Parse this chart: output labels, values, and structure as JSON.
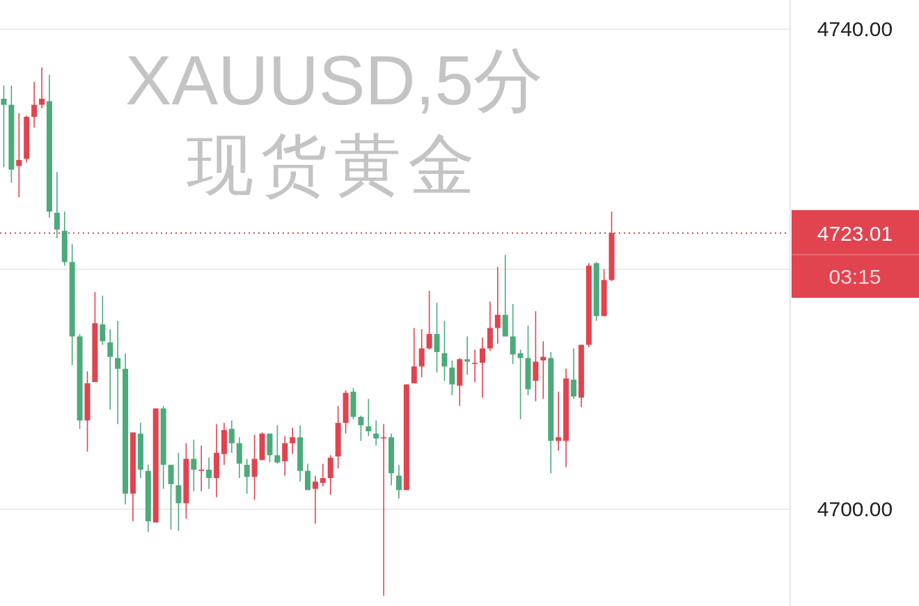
{
  "chart_data": {
    "type": "candlestick",
    "title": "XAUUSD,5分",
    "subtitle": "现货黄金",
    "categories": [
      null,
      null,
      null,
      null,
      null,
      null,
      null,
      null,
      null,
      null,
      null,
      null,
      null,
      null,
      null,
      null,
      null,
      null,
      null,
      null,
      null,
      null,
      null,
      null,
      null,
      null,
      null,
      null,
      null,
      null,
      null,
      null,
      null,
      null,
      null,
      null,
      null,
      null,
      null,
      null,
      null,
      null,
      null,
      null,
      null,
      null,
      null,
      null,
      null,
      null,
      null,
      null,
      null,
      null,
      null,
      null,
      null,
      null,
      null,
      null,
      null,
      null,
      null,
      null,
      null,
      null,
      null,
      null,
      null,
      null,
      null,
      null,
      null,
      null,
      null,
      null,
      null,
      null,
      null,
      null,
      null,
      null,
      null,
      null,
      null,
      null,
      null,
      null,
      null,
      null,
      null,
      null,
      null,
      null,
      null,
      null,
      null,
      null,
      null,
      null,
      null,
      null,
      null,
      null
    ],
    "ohlc": [
      [
        4734.2,
        4735.3,
        4728.5,
        4733.7
      ],
      [
        4733.7,
        4735.3,
        4727.2,
        4728.3
      ],
      [
        4728.6,
        4733.0,
        4726.0,
        4729.1
      ],
      [
        4729.2,
        4732.8,
        4728.9,
        4732.7
      ],
      [
        4732.7,
        4735.6,
        4731.8,
        4733.7
      ],
      [
        4733.7,
        4736.8,
        4733.4,
        4734.2
      ],
      [
        4734.0,
        4736.2,
        4724.3,
        4724.8
      ],
      [
        4724.7,
        4728.1,
        4722.6,
        4723.3
      ],
      [
        4723.2,
        4724.8,
        4720.3,
        4720.6
      ],
      [
        4720.6,
        4722.1,
        4712.0,
        4714.4
      ],
      [
        4714.4,
        4714.6,
        4706.7,
        4707.4
      ],
      [
        4707.4,
        4711.5,
        4704.8,
        4710.5
      ],
      [
        4710.6,
        4718.1,
        4710.6,
        4715.5
      ],
      [
        4715.4,
        4717.8,
        4713.7,
        4714.0
      ],
      [
        4713.9,
        4715.0,
        4708.3,
        4712.7
      ],
      [
        4712.6,
        4715.7,
        4707.1,
        4711.7
      ],
      [
        4711.7,
        4713.0,
        4700.4,
        4701.3
      ],
      [
        4701.3,
        4706.4,
        4699.0,
        4706.4
      ],
      [
        4706.3,
        4707.2,
        4702.6,
        4703.3
      ],
      [
        4703.2,
        4703.7,
        4698.1,
        4699.0
      ],
      [
        4698.9,
        4708.4,
        4698.9,
        4708.4
      ],
      [
        4708.4,
        4708.6,
        4701.7,
        4703.7
      ],
      [
        4703.7,
        4703.7,
        4698.3,
        4702.1
      ],
      [
        4702.0,
        4704.7,
        4698.2,
        4700.5
      ],
      [
        4700.5,
        4705.5,
        4699.2,
        4704.2
      ],
      [
        4704.2,
        4705.8,
        4701.5,
        4703.3
      ],
      [
        4703.2,
        4705.3,
        4701.5,
        4703.3
      ],
      [
        4703.3,
        4704.3,
        4701.7,
        4702.6
      ],
      [
        4702.6,
        4707.1,
        4701.0,
        4704.7
      ],
      [
        4704.6,
        4707.2,
        4703.7,
        4706.6
      ],
      [
        4706.7,
        4707.4,
        4704.7,
        4705.5
      ],
      [
        4705.5,
        4706.0,
        4702.6,
        4703.8
      ],
      [
        4703.7,
        4704.2,
        4701.3,
        4702.7
      ],
      [
        4702.7,
        4706.2,
        4700.8,
        4704.2
      ],
      [
        4704.1,
        4706.4,
        4704.1,
        4706.3
      ],
      [
        4706.3,
        4706.3,
        4703.9,
        4704.5
      ],
      [
        4704.5,
        4707.0,
        4703.8,
        4703.9
      ],
      [
        4704.0,
        4706.1,
        4702.8,
        4705.5
      ],
      [
        4705.5,
        4706.8,
        4704.6,
        4706.0
      ],
      [
        4706.0,
        4707.0,
        4702.3,
        4703.2
      ],
      [
        4703.2,
        4703.8,
        4701.6,
        4701.6
      ],
      [
        4701.7,
        4702.8,
        4698.8,
        4702.3
      ],
      [
        4702.2,
        4703.8,
        4701.9,
        4702.6
      ],
      [
        4702.6,
        4704.5,
        4701.2,
        4704.3
      ],
      [
        4704.4,
        4708.6,
        4703.4,
        4707.2
      ],
      [
        4707.2,
        4709.9,
        4706.3,
        4709.7
      ],
      [
        4709.8,
        4710.1,
        4707.5,
        4707.7
      ],
      [
        4707.7,
        4707.8,
        4705.7,
        4707.0
      ],
      [
        4706.9,
        4709.2,
        4706.1,
        4706.5
      ],
      [
        4706.3,
        4707.4,
        4705.3,
        4705.9
      ],
      [
        4705.9,
        4707.1,
        4692.8,
        4706.0
      ],
      [
        4706.0,
        4706.3,
        4702.0,
        4703.0
      ],
      [
        4702.8,
        4703.7,
        4700.9,
        4701.6
      ],
      [
        4701.6,
        4710.4,
        4701.6,
        4710.4
      ],
      [
        4710.5,
        4715.1,
        4710.5,
        4711.9
      ],
      [
        4711.9,
        4715.0,
        4711.0,
        4713.4
      ],
      [
        4713.4,
        4718.2,
        4713.3,
        4714.6
      ],
      [
        4714.6,
        4717.2,
        4711.4,
        4713.1
      ],
      [
        4713.0,
        4715.7,
        4710.7,
        4711.9
      ],
      [
        4711.8,
        4712.4,
        4709.5,
        4710.4
      ],
      [
        4710.3,
        4712.6,
        4708.6,
        4712.5
      ],
      [
        4712.5,
        4714.4,
        4711.2,
        4712.3
      ],
      [
        4712.1,
        4713.3,
        4710.6,
        4712.2
      ],
      [
        4712.2,
        4714.3,
        4709.3,
        4713.4
      ],
      [
        4713.4,
        4717.3,
        4713.2,
        4715.1
      ],
      [
        4715.1,
        4720.2,
        4713.8,
        4716.2
      ],
      [
        4716.2,
        4721.2,
        4714.4,
        4714.4
      ],
      [
        4714.4,
        4717.1,
        4712.1,
        4712.9
      ],
      [
        4713.0,
        4713.3,
        4707.5,
        4712.6
      ],
      [
        4712.6,
        4715.3,
        4709.5,
        4710.0
      ],
      [
        4710.7,
        4716.5,
        4709.0,
        4712.3
      ],
      [
        4712.4,
        4714.0,
        4709.2,
        4712.7
      ],
      [
        4712.6,
        4713.1,
        4703.0,
        4705.7
      ],
      [
        4705.7,
        4709.8,
        4704.9,
        4706.0
      ],
      [
        4705.7,
        4711.7,
        4703.5,
        4710.9
      ],
      [
        4710.8,
        4713.4,
        4709.2,
        4709.4
      ],
      [
        4709.3,
        4713.7,
        4708.5,
        4713.7
      ],
      [
        4713.7,
        4720.5,
        4713.5,
        4720.3
      ],
      [
        4720.5,
        4720.6,
        4715.7,
        4716.1
      ],
      [
        4716.1,
        4720.0,
        4716.1,
        4719.1
      ],
      [
        4719.1,
        4724.8,
        4719.0,
        4723.01
      ],
      null,
      null,
      null,
      null,
      null,
      null,
      null,
      null,
      null,
      null,
      null,
      null,
      null,
      null,
      null,
      null,
      null,
      null,
      null,
      null,
      null,
      null,
      null
    ],
    "colors": [
      "#4caa7b",
      "#4caa7b",
      "#e1434f",
      "#e1434f",
      "#e1434f",
      "#e1434f",
      "#4caa7b",
      "#4caa7b",
      "#4caa7b",
      "#4caa7b",
      "#4caa7b",
      "#e1434f",
      "#e1434f",
      "#4caa7b",
      "#4caa7b",
      "#4caa7b",
      "#4caa7b",
      "#e1434f",
      "#4caa7b",
      "#4caa7b",
      "#e1434f",
      "#4caa7b",
      "#4caa7b",
      "#4caa7b",
      "#e1434f",
      "#4caa7b",
      "#e1434f",
      "#4caa7b",
      "#e1434f",
      "#e1434f",
      "#4caa7b",
      "#4caa7b",
      "#4caa7b",
      "#e1434f",
      "#e1434f",
      "#4caa7b",
      "#4caa7b",
      "#e1434f",
      "#e1434f",
      "#4caa7b",
      "#4caa7b",
      "#e1434f",
      "#e1434f",
      "#e1434f",
      "#e1434f",
      "#e1434f",
      "#4caa7b",
      "#4caa7b",
      "#4caa7b",
      "#4caa7b",
      "#e1434f",
      "#4caa7b",
      "#4caa7b",
      "#e1434f",
      "#e1434f",
      "#e1434f",
      "#e1434f",
      "#4caa7b",
      "#4caa7b",
      "#4caa7b",
      "#e1434f",
      "#4caa7b",
      "#e1434f",
      "#e1434f",
      "#e1434f",
      "#e1434f",
      "#4caa7b",
      "#4caa7b",
      "#4caa7b",
      "#4caa7b",
      "#e1434f",
      "#e1434f",
      "#4caa7b",
      "#e1434f",
      "#e1434f",
      "#4caa7b",
      "#e1434f",
      "#e1434f",
      "#4caa7b",
      "#e1434f",
      "#e1434f",
      null,
      null,
      null,
      null,
      null,
      null,
      null,
      null,
      null,
      null,
      null,
      null,
      null,
      null,
      null,
      null,
      null,
      null,
      null,
      null,
      null,
      null,
      null
    ],
    "ylim": [
      4691.94,
      4742.43
    ],
    "yticks": [
      {
        "value": 4740,
        "label": "4740.00"
      },
      {
        "value": 4720,
        "label": null
      },
      {
        "value": 4700,
        "label": "4700.00"
      }
    ],
    "grid": "y",
    "ref_lines": [
      {
        "axis": "y",
        "value": 4723.01,
        "label": "4723.01",
        "color": "#e1434f",
        "line_style": "dotted"
      }
    ],
    "annotations": [
      "03:15"
    ]
  }
}
